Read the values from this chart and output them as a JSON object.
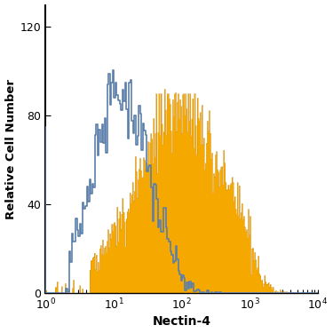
{
  "title": "",
  "xlabel": "Nectin-4",
  "ylabel": "Relative Cell Number",
  "xlim_log": [
    1,
    10000
  ],
  "ylim": [
    0,
    130
  ],
  "yticks": [
    0,
    40,
    80,
    120
  ],
  "blue_color": "#5b7faa",
  "blue_dark": "#2b4f7a",
  "orange_color": "#f5a800",
  "background_color": "#ffffff",
  "figsize": [
    3.75,
    3.75
  ],
  "dpi": 100
}
